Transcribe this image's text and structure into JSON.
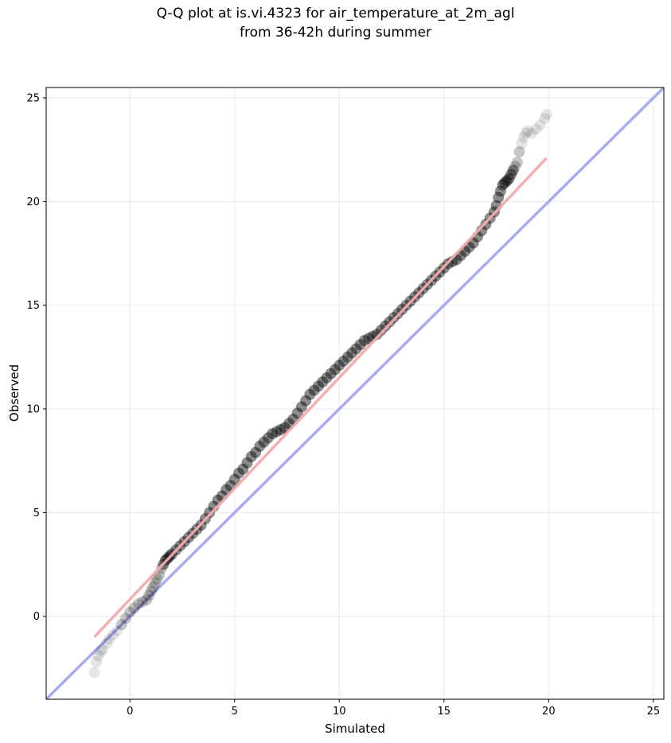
{
  "chart_data": {
    "type": "scatter",
    "title": "Q-Q plot at is.vi.4323 for air_temperature_at_2m_agl",
    "subtitle": "from 36-42h during summer",
    "xlabel": "Simulated",
    "ylabel": "Observed",
    "xlim": [
      -4,
      25.5
    ],
    "ylim": [
      -4,
      25.5
    ],
    "xticks": [
      0,
      5,
      10,
      15,
      20,
      25
    ],
    "yticks": [
      0,
      5,
      10,
      15,
      20,
      25
    ],
    "grid": true,
    "colors": {
      "points": "#000000",
      "identity_line": "#aaaaf4",
      "fit_line": "#f4aaaa",
      "grid": "#ececec"
    },
    "identity_line": {
      "points": [
        [
          -4,
          -4
        ],
        [
          25.5,
          25.5
        ]
      ]
    },
    "fit_line": {
      "points": [
        [
          -1.7,
          -1.0
        ],
        [
          19.9,
          22.1
        ]
      ]
    },
    "series": [
      {
        "x": [
          -1.7,
          -1.6,
          -1.5,
          -1.4,
          -1.3,
          -1.1,
          -1.0,
          -0.8,
          -0.6,
          -0.4,
          -0.2,
          0.0,
          0.2,
          0.4,
          0.6,
          0.8,
          0.9,
          1.0,
          1.1,
          1.2,
          1.3,
          1.4,
          1.5,
          1.6,
          1.7,
          1.8,
          1.9,
          2.0,
          2.2,
          2.4,
          2.6,
          2.8,
          3.0,
          3.2,
          3.4,
          3.6,
          3.8,
          4.0,
          4.2,
          4.4,
          4.6,
          4.8,
          5.0,
          5.2,
          5.4,
          5.6,
          5.8,
          6.0,
          6.2,
          6.4,
          6.6,
          6.8,
          7.0,
          7.2,
          7.4,
          7.6,
          7.8,
          8.0,
          8.2,
          8.4,
          8.6,
          8.8,
          9.0,
          9.2,
          9.4,
          9.6,
          9.8,
          10.0,
          10.2,
          10.4,
          10.6,
          10.8,
          11.0,
          11.2,
          11.4,
          11.6,
          11.8,
          12.0,
          12.2,
          12.4,
          12.6,
          12.8,
          13.0,
          13.2,
          13.4,
          13.6,
          13.8,
          14.0,
          14.2,
          14.4,
          14.6,
          14.8,
          15.0,
          15.2,
          15.4,
          15.6,
          15.8,
          16.0,
          16.2,
          16.4,
          16.6,
          16.8,
          17.0,
          17.2,
          17.4,
          17.5,
          17.6,
          17.7,
          17.8,
          17.9,
          18.0,
          18.1,
          18.2,
          18.3,
          18.4,
          18.5,
          18.6,
          18.7,
          18.8,
          18.9,
          19.0,
          19.2,
          19.4,
          19.6,
          19.8,
          19.9
        ],
        "y": [
          -2.7,
          -2.2,
          -1.9,
          -1.7,
          -1.6,
          -1.3,
          -1.1,
          -0.9,
          -0.7,
          -0.4,
          -0.1,
          0.2,
          0.4,
          0.6,
          0.7,
          0.8,
          1.0,
          1.2,
          1.4,
          1.6,
          1.8,
          2.0,
          2.3,
          2.5,
          2.7,
          2.8,
          2.9,
          3.0,
          3.2,
          3.4,
          3.6,
          3.8,
          4.0,
          4.2,
          4.4,
          4.7,
          5.0,
          5.3,
          5.6,
          5.8,
          6.1,
          6.3,
          6.6,
          6.9,
          7.1,
          7.4,
          7.7,
          7.9,
          8.2,
          8.4,
          8.6,
          8.8,
          8.9,
          9.0,
          9.1,
          9.3,
          9.5,
          9.8,
          10.1,
          10.4,
          10.7,
          10.9,
          11.1,
          11.3,
          11.5,
          11.7,
          11.9,
          12.1,
          12.3,
          12.5,
          12.7,
          12.9,
          13.1,
          13.3,
          13.4,
          13.5,
          13.6,
          13.8,
          14.0,
          14.2,
          14.4,
          14.6,
          14.8,
          15.0,
          15.2,
          15.4,
          15.6,
          15.8,
          16.0,
          16.2,
          16.4,
          16.6,
          16.8,
          17.0,
          17.1,
          17.2,
          17.4,
          17.6,
          17.8,
          18.0,
          18.3,
          18.6,
          18.9,
          19.2,
          19.5,
          19.8,
          20.2,
          20.5,
          20.8,
          20.9,
          21.0,
          21.1,
          21.3,
          21.5,
          21.7,
          21.9,
          22.4,
          22.8,
          23.1,
          23.3,
          23.4,
          23.3,
          23.5,
          23.7,
          24.0,
          24.2
        ]
      }
    ]
  }
}
